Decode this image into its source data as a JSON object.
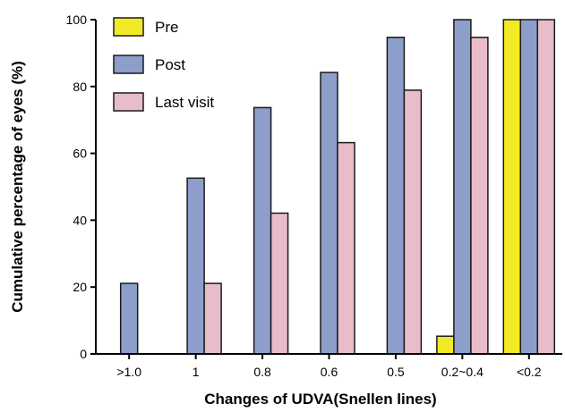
{
  "chart_data": {
    "type": "bar",
    "xlabel": "Changes of UDVA(Snellen lines)",
    "ylabel": "Cumulative percentage of eyes (%)",
    "categories": [
      ">1.0",
      "1",
      "0.8",
      "0.6",
      "0.5",
      "0.2~0.4",
      "<0.2"
    ],
    "ylim": [
      0,
      100
    ],
    "yticks": [
      0,
      20,
      40,
      60,
      80,
      100
    ],
    "grid": false,
    "legend_position": "top-left",
    "series": [
      {
        "name": "Pre",
        "color": "#f2ea27",
        "values": [
          0,
          0,
          0,
          0,
          0,
          5.3,
          100
        ]
      },
      {
        "name": "Post",
        "color": "#8c9ec9",
        "values": [
          21.1,
          52.6,
          73.7,
          84.2,
          94.7,
          100,
          100
        ]
      },
      {
        "name": "Last visit",
        "color": "#e8bcc8",
        "values": [
          0,
          21.1,
          42.1,
          63.2,
          78.9,
          94.7,
          100
        ]
      }
    ]
  }
}
